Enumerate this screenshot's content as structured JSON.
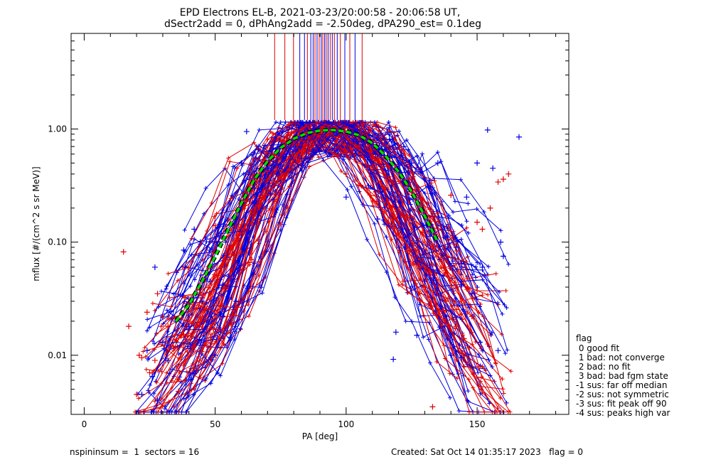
{
  "chart_data": {
    "type": "line",
    "title_line1": "EPD Electrons EL-B, 2021-03-23/20:00:58 - 20:06:58 UT,",
    "title_line2": "dSectr2add = 0, dPhAng2add = -2.50deg, dPA290_est=   0.1deg",
    "xlabel": "PA [deg]",
    "ylabel": "mflux [#/(cm^2 s sr MeV)]",
    "xlim": [
      -5,
      185
    ],
    "ylim": [
      0.003,
      7
    ],
    "yscale": "log",
    "xticks": [
      {
        "value": 0,
        "label": "0"
      },
      {
        "value": 50,
        "label": "50"
      },
      {
        "value": 100,
        "label": "100"
      },
      {
        "value": 150,
        "label": "150"
      }
    ],
    "yticks": [
      {
        "value": 0.01,
        "label": "0.01"
      },
      {
        "value": 0.1,
        "label": "0.10"
      },
      {
        "value": 1.0,
        "label": "1.00"
      }
    ],
    "series_colors": {
      "red": "#e00000",
      "blue": "#0000e0",
      "fit": "#00dd00",
      "fit_outline": "#000000"
    },
    "fit_curve": {
      "x": [
        35,
        40,
        45,
        50,
        55,
        60,
        65,
        70,
        75,
        80,
        85,
        90,
        95,
        100,
        105,
        110,
        115,
        120,
        125,
        130,
        135
      ],
      "y": [
        0.02,
        0.028,
        0.045,
        0.075,
        0.13,
        0.22,
        0.36,
        0.52,
        0.68,
        0.82,
        0.92,
        0.97,
        0.98,
        0.95,
        0.88,
        0.75,
        0.58,
        0.42,
        0.28,
        0.17,
        0.1
      ]
    },
    "red_scatter": {
      "x": [
        15,
        17,
        20,
        21,
        22,
        24,
        25,
        27,
        28,
        30,
        32,
        34,
        36,
        38,
        40,
        42,
        44,
        46,
        48,
        50,
        52,
        55,
        58,
        60,
        62,
        64,
        66,
        68,
        70,
        72,
        75,
        78,
        80,
        84,
        100,
        105,
        110,
        115,
        118,
        120,
        125,
        128,
        130,
        133,
        135,
        138,
        140,
        142,
        145,
        148,
        150,
        152,
        155,
        158,
        160,
        162
      ],
      "y": [
        0.082,
        0.018,
        0.0045,
        0.01,
        0.0095,
        0.024,
        0.007,
        0.009,
        0.035,
        0.022,
        0.018,
        0.012,
        0.0048,
        0.015,
        0.028,
        0.012,
        0.038,
        0.025,
        0.06,
        0.14,
        0.027,
        0.09,
        0.027,
        0.08,
        0.23,
        0.07,
        0.35,
        0.25,
        0.42,
        0.6,
        0.8,
        1.1,
        0.95,
        0.9,
        0.4,
        0.7,
        0.55,
        0.3,
        0.16,
        0.12,
        0.36,
        0.06,
        0.04,
        0.0035,
        0.18,
        0.03,
        0.26,
        0.018,
        0.014,
        0.022,
        0.15,
        0.13,
        0.2,
        0.34,
        0.36,
        0.4
      ]
    },
    "blue_scatter": {
      "x": [
        22,
        24,
        26,
        27,
        28,
        30,
        32,
        35,
        38,
        40,
        42,
        45,
        48,
        50,
        52,
        55,
        58,
        60,
        62,
        65,
        70,
        75,
        83,
        95,
        100,
        103,
        112,
        118,
        119,
        122,
        125,
        127,
        130,
        132,
        135,
        138,
        140,
        142,
        144,
        146,
        148,
        150,
        152,
        154,
        156,
        158,
        159,
        160,
        166
      ],
      "y": [
        0.0045,
        0.011,
        0.0065,
        0.06,
        0.004,
        0.013,
        0.009,
        0.02,
        0.085,
        0.018,
        0.13,
        0.03,
        0.045,
        0.01,
        0.016,
        0.05,
        0.03,
        0.5,
        0.95,
        0.3,
        0.45,
        0.7,
        0.55,
        0.82,
        0.25,
        1.08,
        0.16,
        0.0092,
        0.016,
        0.7,
        0.5,
        0.015,
        0.045,
        0.35,
        0.5,
        0.11,
        0.01,
        0.09,
        0.0095,
        0.25,
        0.035,
        0.5,
        0.06,
        0.98,
        0.45,
        0.011,
        0.1,
        0.075,
        0.85
      ]
    },
    "vertical_lines_x": [
      72.7,
      76.6,
      79.9,
      82.3,
      84.1,
      85.2,
      86.5,
      87.4,
      88.1,
      88.9,
      89.7,
      90.5,
      91.1,
      91.8,
      92.4,
      93.1,
      93.9,
      94.7,
      95.5,
      96.6,
      97.8,
      99.5,
      101.4,
      103.4,
      106.1
    ],
    "vertical_lines_colors": [
      "red",
      "red",
      "red",
      "blue",
      "blue",
      "red",
      "blue",
      "blue",
      "red",
      "blue",
      "red",
      "blue",
      "red",
      "blue",
      "red",
      "blue",
      "red",
      "blue",
      "red",
      "blue",
      "red",
      "blue",
      "red",
      "blue",
      "red"
    ]
  },
  "legend": {
    "title": "flag",
    "items": [
      " 0 good fit",
      " 1 bad: not converge",
      " 2 bad: no fit",
      " 3 bad: bad fgm state",
      "-1 sus: far off median",
      "-2 sus: not symmetric",
      "-3 sus: fit peak off 90",
      "-4 sus: peaks high var"
    ]
  },
  "footer": {
    "left": "nspininsum =  1  sectors = 16",
    "right": "Created: Sat Oct 14 01:35:17 2023   flag = 0"
  }
}
